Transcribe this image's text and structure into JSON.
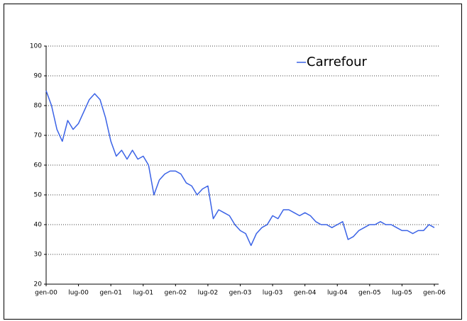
{
  "chart_data": {
    "type": "line",
    "categories": [
      "gen-00",
      null,
      null,
      null,
      null,
      null,
      "lug-00",
      null,
      null,
      null,
      null,
      null,
      "gen-01",
      null,
      null,
      null,
      null,
      null,
      "lug-01",
      null,
      null,
      null,
      null,
      null,
      "gen-02",
      null,
      null,
      null,
      null,
      null,
      "lug-02",
      null,
      null,
      null,
      null,
      null,
      "gen-03",
      null,
      null,
      null,
      null,
      null,
      "lug-03",
      null,
      null,
      null,
      null,
      null,
      "gen-04",
      null,
      null,
      null,
      null,
      null,
      "lug-04",
      null,
      null,
      null,
      null,
      null,
      "gen-05",
      null,
      null,
      null,
      null,
      null,
      "lug-05",
      null,
      null,
      null,
      null,
      null,
      "gen-06"
    ],
    "series": [
      {
        "name": "Carrefour",
        "color": "#3a62e6",
        "values": [
          85,
          80,
          72,
          68,
          75,
          72,
          74,
          78,
          82,
          84,
          82,
          76,
          68,
          63,
          65,
          62,
          65,
          62,
          63,
          60,
          50,
          55,
          57,
          58,
          58,
          57,
          54,
          53,
          50,
          52,
          53,
          42,
          45,
          44,
          43,
          40,
          38,
          37,
          33,
          37,
          39,
          40,
          43,
          42,
          45,
          45,
          44,
          43,
          44,
          43,
          41,
          40,
          40,
          39,
          40,
          41,
          35,
          36,
          38,
          39,
          40,
          40,
          41,
          40,
          40,
          39,
          38,
          38,
          37,
          38,
          38,
          40,
          39
        ]
      }
    ],
    "ylim": [
      20,
      100
    ],
    "yticks": [
      20,
      30,
      40,
      50,
      60,
      70,
      80,
      90,
      100
    ],
    "grid": true,
    "legend": "top-right"
  }
}
